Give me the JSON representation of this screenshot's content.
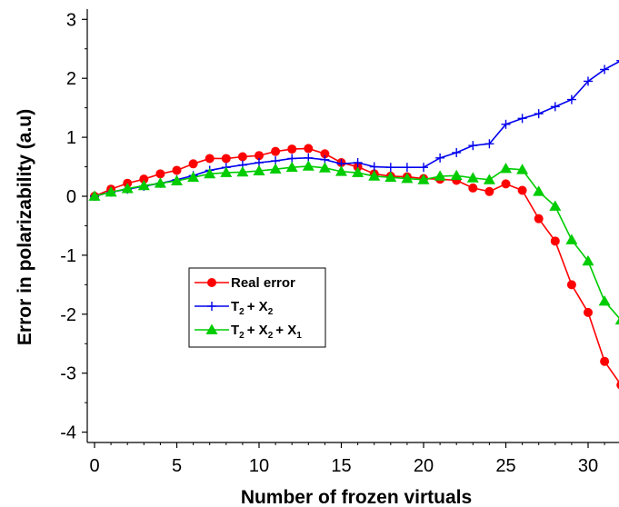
{
  "chart_data": {
    "type": "line",
    "title": "",
    "xlabel": "Number of frozen virtuals",
    "ylabel": "Error in polarizability (a.u)",
    "xlim": [
      -0.3,
      32
    ],
    "ylim": [
      -4.1,
      3.2
    ],
    "xticks": [
      0,
      5,
      10,
      15,
      20,
      25,
      30
    ],
    "yticks": [
      3,
      2,
      1,
      0,
      -1,
      -2,
      -3,
      -4
    ],
    "grid": false,
    "legend_position": "lower-left",
    "series": [
      {
        "name": "Real error",
        "legend_main": [
          "Real error"
        ],
        "legend_sub": [],
        "color": "#ff0000",
        "marker": "circle",
        "x": [
          0,
          1,
          2,
          3,
          4,
          5,
          6,
          7,
          8,
          9,
          10,
          11,
          12,
          13,
          14,
          15,
          16,
          17,
          18,
          19,
          20,
          21,
          22,
          23,
          24,
          25,
          26,
          27,
          28,
          29,
          30,
          31,
          32
        ],
        "y": [
          0.0,
          0.12,
          0.22,
          0.29,
          0.38,
          0.44,
          0.55,
          0.64,
          0.64,
          0.67,
          0.69,
          0.76,
          0.8,
          0.81,
          0.72,
          0.57,
          0.5,
          0.38,
          0.34,
          0.33,
          0.3,
          0.29,
          0.27,
          0.14,
          0.08,
          0.21,
          0.1,
          -0.38,
          -0.76,
          -1.5,
          -1.97,
          -2.8,
          -3.2
        ]
      },
      {
        "name": "T2 + X2",
        "legend_main": [
          "T",
          "+  X"
        ],
        "legend_sub": [
          "2",
          "2"
        ],
        "color": "#0000ee",
        "marker": "plus",
        "x": [
          0,
          1,
          2,
          3,
          4,
          5,
          6,
          7,
          8,
          9,
          10,
          11,
          12,
          13,
          14,
          15,
          16,
          17,
          18,
          19,
          20,
          21,
          22,
          23,
          24,
          25,
          26,
          27,
          28,
          29,
          30,
          31,
          32
        ],
        "y": [
          0.0,
          0.07,
          0.12,
          0.17,
          0.22,
          0.28,
          0.35,
          0.44,
          0.49,
          0.53,
          0.57,
          0.6,
          0.64,
          0.65,
          0.62,
          0.55,
          0.57,
          0.5,
          0.49,
          0.49,
          0.49,
          0.65,
          0.74,
          0.86,
          0.89,
          1.22,
          1.32,
          1.4,
          1.52,
          1.64,
          1.95,
          2.15,
          2.3
        ]
      },
      {
        "name": "T2 + X2 + X1",
        "legend_main": [
          "T",
          "+  X",
          "+ X"
        ],
        "legend_sub": [
          "2",
          "2",
          "1"
        ],
        "color": "#00cc00",
        "marker": "triangle",
        "x": [
          0,
          1,
          2,
          3,
          4,
          5,
          6,
          7,
          8,
          9,
          10,
          11,
          12,
          13,
          14,
          15,
          16,
          17,
          18,
          19,
          20,
          21,
          22,
          23,
          24,
          25,
          26,
          27,
          28,
          29,
          30,
          31,
          32
        ],
        "y": [
          0.0,
          0.07,
          0.13,
          0.18,
          0.22,
          0.26,
          0.32,
          0.38,
          0.4,
          0.41,
          0.43,
          0.46,
          0.49,
          0.51,
          0.48,
          0.42,
          0.4,
          0.34,
          0.32,
          0.3,
          0.28,
          0.34,
          0.35,
          0.31,
          0.28,
          0.47,
          0.45,
          0.08,
          -0.17,
          -0.74,
          -1.1,
          -1.78,
          -2.1
        ]
      }
    ]
  }
}
